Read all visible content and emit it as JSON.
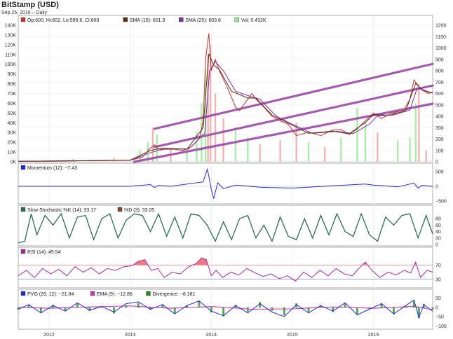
{
  "header": {
    "title": "BitStamp (USD)",
    "subtitle": "Sep 25, 2016 – Daily"
  },
  "colors": {
    "price_up": "#2f9a2f",
    "price_down": "#c23535",
    "sma10": "#5a2d12",
    "sma25": "#7b2fa3",
    "volume_up": "#9be89b",
    "volume_down": "#f0a8a8",
    "trend_lines": "#9b4aa6",
    "momentum": "#2a2ad0",
    "stochastic": "#2f6a5a",
    "rsi": "#9c2f9c",
    "rsi_fill": "#f06a7a",
    "pvo": "#2a2ad0",
    "ema": "#c23ab0",
    "divergence": "#1f8f1f"
  },
  "chart_data": [
    {
      "id": "price",
      "type": "line",
      "legend": [
        {
          "text": "Op:600, Hi:602, Lo:599.6, Cl:600",
          "color": "#c23535"
        },
        {
          "text": "SMA (10): 601.9",
          "color": "#5a2d12"
        },
        {
          "text": "SMA (25): 603.8",
          "color": "#7b2fa3"
        },
        {
          "text": "Vol: 0.432K",
          "color": "#9be89b"
        }
      ],
      "x_ticks": [
        "2012",
        "2013",
        "2014",
        "2015",
        "2016"
      ],
      "x_tick_pos": [
        2012.0,
        2013.0,
        2014.0,
        2015.0,
        2016.0
      ],
      "xlim": [
        2011.62,
        2016.73
      ],
      "left_axis_labels": [
        "0K",
        "10K",
        "20K",
        "30K",
        "40K",
        "50K",
        "60K",
        "70K",
        "80K",
        "90K",
        "100K",
        "110K",
        "120K",
        "130K",
        "140K"
      ],
      "left_axis_values": [
        0,
        10000,
        20000,
        30000,
        40000,
        50000,
        60000,
        70000,
        80000,
        90000,
        100000,
        110000,
        120000,
        130000,
        140000
      ],
      "right_axis_labels": [
        "0",
        "100",
        "200",
        "300",
        "400",
        "500",
        "600",
        "700",
        "800",
        "900",
        "1000",
        "1100",
        "1200"
      ],
      "right_axis_values": [
        0,
        100,
        200,
        300,
        400,
        500,
        600,
        700,
        800,
        900,
        1000,
        1100,
        1200
      ],
      "ylim_price": [
        0,
        1200
      ],
      "ylim_volume": [
        0,
        140000
      ],
      "price": {
        "x": [
          2011.62,
          2012.0,
          2012.5,
          2012.9,
          2013.0,
          2013.15,
          2013.25,
          2013.3,
          2013.35,
          2013.45,
          2013.55,
          2013.65,
          2013.75,
          2013.85,
          2013.9,
          2013.93,
          2013.97,
          2014.0,
          2014.05,
          2014.1,
          2014.2,
          2014.3,
          2014.35,
          2014.45,
          2014.5,
          2014.55,
          2014.65,
          2014.75,
          2014.85,
          2014.95,
          2015.05,
          2015.2,
          2015.35,
          2015.5,
          2015.6,
          2015.7,
          2015.8,
          2015.9,
          2016.0,
          2016.1,
          2016.2,
          2016.3,
          2016.38,
          2016.45,
          2016.5,
          2016.56,
          2016.6,
          2016.67,
          2016.73
        ],
        "y": [
          5,
          5,
          10,
          12,
          14,
          40,
          120,
          150,
          110,
          110,
          110,
          100,
          130,
          200,
          350,
          900,
          1130,
          800,
          900,
          800,
          650,
          480,
          450,
          550,
          600,
          550,
          480,
          400,
          360,
          330,
          230,
          260,
          230,
          280,
          285,
          240,
          290,
          360,
          430,
          380,
          420,
          440,
          460,
          550,
          720,
          660,
          630,
          600,
          610
        ]
      },
      "sma10": {
        "x": [
          2011.62,
          2012.5,
          2013.0,
          2013.25,
          2013.4,
          2013.7,
          2013.9,
          2013.97,
          2014.03,
          2014.1,
          2014.25,
          2014.45,
          2014.55,
          2014.75,
          2014.95,
          2015.2,
          2015.5,
          2015.7,
          2015.9,
          2016.0,
          2016.2,
          2016.4,
          2016.52,
          2016.6,
          2016.73
        ],
        "y": [
          5,
          10,
          14,
          100,
          120,
          110,
          300,
          950,
          850,
          810,
          620,
          560,
          560,
          410,
          340,
          250,
          270,
          245,
          345,
          415,
          410,
          450,
          690,
          630,
          602
        ]
      },
      "sma25": {
        "x": [
          2011.62,
          2012.5,
          2013.0,
          2013.27,
          2013.45,
          2013.72,
          2013.92,
          2013.98,
          2014.05,
          2014.15,
          2014.3,
          2014.5,
          2014.6,
          2014.8,
          2015.0,
          2015.25,
          2015.55,
          2015.75,
          2015.95,
          2016.05,
          2016.25,
          2016.45,
          2016.54,
          2016.62,
          2016.73
        ],
        "y": [
          5,
          10,
          14,
          85,
          115,
          112,
          250,
          800,
          880,
          800,
          620,
          570,
          550,
          400,
          330,
          250,
          268,
          248,
          330,
          405,
          412,
          455,
          650,
          630,
          604
        ]
      },
      "volume_bars": [
        {
          "x": 2012.3,
          "v": 3000,
          "up": true
        },
        {
          "x": 2012.8,
          "v": 4000,
          "up": false
        },
        {
          "x": 2013.12,
          "v": 12000,
          "up": true
        },
        {
          "x": 2013.22,
          "v": 20000,
          "up": true
        },
        {
          "x": 2013.28,
          "v": 35000,
          "up": false
        },
        {
          "x": 2013.33,
          "v": 28000,
          "up": true
        },
        {
          "x": 2013.5,
          "v": 14000,
          "up": false
        },
        {
          "x": 2013.7,
          "v": 12000,
          "up": true
        },
        {
          "x": 2013.82,
          "v": 30000,
          "up": true
        },
        {
          "x": 2013.88,
          "v": 60000,
          "up": true
        },
        {
          "x": 2013.93,
          "v": 95000,
          "up": true
        },
        {
          "x": 2013.96,
          "v": 110000,
          "up": false
        },
        {
          "x": 2013.99,
          "v": 120000,
          "up": false
        },
        {
          "x": 2014.05,
          "v": 70000,
          "up": false
        },
        {
          "x": 2014.15,
          "v": 45000,
          "up": false
        },
        {
          "x": 2014.3,
          "v": 35000,
          "up": true
        },
        {
          "x": 2014.45,
          "v": 25000,
          "up": true
        },
        {
          "x": 2014.6,
          "v": 18000,
          "up": false
        },
        {
          "x": 2014.85,
          "v": 22000,
          "up": false
        },
        {
          "x": 2015.05,
          "v": 40000,
          "up": false
        },
        {
          "x": 2015.2,
          "v": 20000,
          "up": true
        },
        {
          "x": 2015.4,
          "v": 15000,
          "up": false
        },
        {
          "x": 2015.6,
          "v": 25000,
          "up": true
        },
        {
          "x": 2015.8,
          "v": 55000,
          "up": true
        },
        {
          "x": 2015.9,
          "v": 40000,
          "up": true
        },
        {
          "x": 2016.05,
          "v": 30000,
          "up": false
        },
        {
          "x": 2016.3,
          "v": 22000,
          "up": true
        },
        {
          "x": 2016.45,
          "v": 25000,
          "up": true
        },
        {
          "x": 2016.52,
          "v": 60000,
          "up": true
        },
        {
          "x": 2016.56,
          "v": 80000,
          "up": false
        },
        {
          "x": 2016.65,
          "v": 12000,
          "up": false
        }
      ],
      "trend_lines": [
        {
          "x": [
            2013.05,
            2016.73
          ],
          "y": [
            0,
            510
          ]
        },
        {
          "x": [
            2013.3,
            2016.73
          ],
          "y": [
            290,
            860
          ]
        },
        {
          "x": [
            2013.3,
            2016.73
          ],
          "y": [
            130,
            670
          ]
        }
      ]
    },
    {
      "id": "momentum",
      "type": "line",
      "legend": [
        {
          "text": "Momentum (12): −7.43",
          "color": "#2a2ad0"
        }
      ],
      "axis_labels": [
        "500",
        "0",
        "−500"
      ],
      "axis_values": [
        500,
        0,
        -500
      ],
      "ylim": [
        -550,
        550
      ],
      "series": {
        "x": [
          2011.62,
          2013.0,
          2013.25,
          2013.3,
          2013.35,
          2013.5,
          2013.9,
          2013.95,
          2013.97,
          2014.0,
          2014.03,
          2014.08,
          2014.15,
          2014.3,
          2014.6,
          2015.0,
          2015.5,
          2015.9,
          2016.0,
          2016.3,
          2016.5,
          2016.55,
          2016.6,
          2016.73
        ],
        "y": [
          0,
          0,
          60,
          -40,
          30,
          0,
          150,
          580,
          350,
          -100,
          -420,
          120,
          -80,
          40,
          -30,
          -60,
          20,
          80,
          40,
          -20,
          110,
          -60,
          30,
          -7
        ]
      }
    },
    {
      "id": "stochastic",
      "type": "line",
      "legend": [
        {
          "text": "Slow Stochastic %K (14): 33.17",
          "color": "#2f6a5a"
        },
        {
          "text": "%D (3): 33.05",
          "color": "#7a4a2a"
        }
      ],
      "axis_labels": [
        "80",
        "60",
        "40",
        "20",
        "0"
      ],
      "axis_values": [
        80,
        60,
        40,
        20,
        0
      ],
      "ylim": [
        0,
        100
      ],
      "series": {
        "x": [
          2011.62,
          2011.7,
          2011.78,
          2011.85,
          2011.95,
          2012.05,
          2012.15,
          2012.25,
          2012.35,
          2012.45,
          2012.55,
          2012.65,
          2012.75,
          2012.85,
          2012.95,
          2013.05,
          2013.15,
          2013.25,
          2013.35,
          2013.45,
          2013.55,
          2013.65,
          2013.75,
          2013.85,
          2013.95,
          2014.05,
          2014.15,
          2014.25,
          2014.35,
          2014.45,
          2014.55,
          2014.65,
          2014.75,
          2014.85,
          2014.95,
          2015.05,
          2015.15,
          2015.25,
          2015.35,
          2015.45,
          2015.55,
          2015.65,
          2015.75,
          2015.85,
          2015.95,
          2016.05,
          2016.15,
          2016.25,
          2016.35,
          2016.45,
          2016.55,
          2016.65,
          2016.73
        ],
        "y": [
          5,
          10,
          95,
          30,
          90,
          60,
          95,
          20,
          85,
          90,
          15,
          80,
          95,
          20,
          75,
          95,
          90,
          40,
          95,
          25,
          85,
          20,
          95,
          90,
          60,
          10,
          70,
          15,
          80,
          90,
          20,
          60,
          10,
          85,
          25,
          15,
          80,
          20,
          90,
          30,
          95,
          40,
          25,
          95,
          30,
          10,
          85,
          60,
          90,
          95,
          20,
          90,
          33
        ]
      }
    },
    {
      "id": "rsi",
      "type": "line",
      "legend": [
        {
          "text": "RSI (14): 49.54",
          "color": "#9c2f9c"
        }
      ],
      "axis_labels": [
        "70",
        "30"
      ],
      "axis_values": [
        70,
        30
      ],
      "ylim": [
        10,
        100
      ],
      "series": {
        "x": [
          2011.62,
          2011.72,
          2011.82,
          2011.92,
          2012.02,
          2012.12,
          2012.22,
          2012.32,
          2012.42,
          2012.52,
          2012.62,
          2012.72,
          2012.82,
          2012.92,
          2013.02,
          2013.1,
          2013.18,
          2013.26,
          2013.34,
          2013.42,
          2013.52,
          2013.62,
          2013.72,
          2013.82,
          2013.88,
          2013.94,
          2014.0,
          2014.06,
          2014.14,
          2014.24,
          2014.34,
          2014.44,
          2014.54,
          2014.64,
          2014.74,
          2014.84,
          2014.94,
          2015.04,
          2015.14,
          2015.24,
          2015.34,
          2015.44,
          2015.54,
          2015.64,
          2015.74,
          2015.84,
          2015.9,
          2015.98,
          2016.08,
          2016.18,
          2016.28,
          2016.38,
          2016.46,
          2016.52,
          2016.58,
          2016.66,
          2016.73
        ],
        "y": [
          40,
          55,
          35,
          60,
          45,
          58,
          40,
          65,
          50,
          62,
          45,
          60,
          55,
          65,
          68,
          80,
          85,
          55,
          60,
          35,
          50,
          45,
          65,
          75,
          90,
          85,
          40,
          55,
          35,
          50,
          42,
          60,
          48,
          38,
          45,
          32,
          40,
          25,
          50,
          35,
          55,
          40,
          60,
          45,
          40,
          65,
          78,
          55,
          35,
          50,
          42,
          55,
          48,
          78,
          35,
          55,
          50
        ]
      }
    },
    {
      "id": "pvo",
      "type": "line",
      "legend": [
        {
          "text": "PVO (26, 12): −21.04",
          "color": "#2a2ad0"
        },
        {
          "text": "EMA (9): −12.86",
          "color": "#c23ab0"
        },
        {
          "text": "Divergence: −8.181",
          "color": "#1f8f1f"
        }
      ],
      "axis_labels": [
        "50",
        "0",
        "−50",
        "−100"
      ],
      "axis_values": [
        50,
        0,
        -50,
        -100
      ],
      "ylim": [
        -110,
        60
      ],
      "series": {
        "x": [
          2011.62,
          2011.75,
          2011.9,
          2012.05,
          2012.2,
          2012.35,
          2012.5,
          2012.65,
          2012.8,
          2012.95,
          2013.1,
          2013.25,
          2013.4,
          2013.55,
          2013.7,
          2013.85,
          2014.0,
          2014.15,
          2014.3,
          2014.45,
          2014.6,
          2014.75,
          2014.9,
          2015.05,
          2015.2,
          2015.35,
          2015.5,
          2015.65,
          2015.8,
          2015.95,
          2016.1,
          2016.25,
          2016.4,
          2016.5,
          2016.56,
          2016.62,
          2016.73
        ],
        "y": [
          -10,
          15,
          -30,
          10,
          -20,
          25,
          -15,
          5,
          -25,
          20,
          30,
          -10,
          15,
          -35,
          10,
          35,
          -20,
          -45,
          10,
          -30,
          20,
          -25,
          -50,
          15,
          -30,
          10,
          -20,
          25,
          -40,
          -10,
          20,
          -35,
          10,
          40,
          -55,
          15,
          -21
        ]
      },
      "ema": {
        "x": [
          2011.62,
          2012.0,
          2012.5,
          2013.0,
          2013.5,
          2014.0,
          2014.5,
          2015.0,
          2015.5,
          2016.0,
          2016.5,
          2016.73
        ],
        "y": [
          0,
          -5,
          3,
          8,
          -5,
          5,
          -10,
          -8,
          3,
          -5,
          6,
          -13
        ]
      }
    }
  ]
}
